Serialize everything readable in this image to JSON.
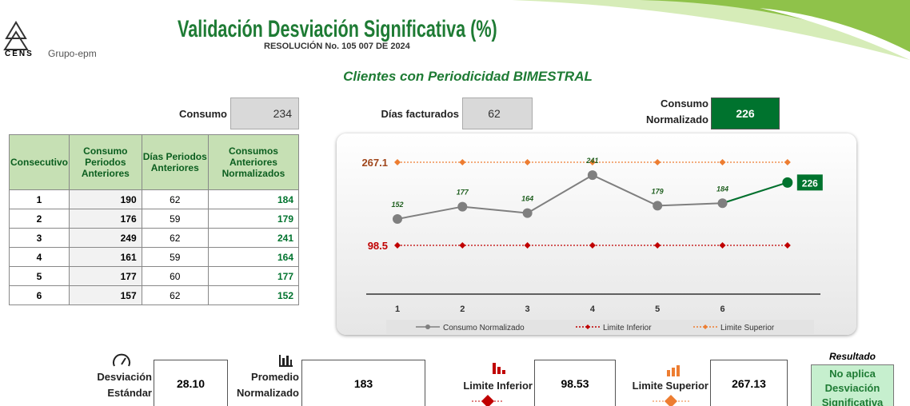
{
  "header": {
    "logo": "CENS",
    "brand": "Grupo-epm",
    "title": "Validación Desviación Significativa (%)",
    "subtitle": "RESOLUCIÓN No. 105 007 DE 2024",
    "section": "Clientes con Periodicidad BIMESTRAL"
  },
  "inputs": {
    "consumo_label": "Consumo",
    "consumo": 234,
    "dias_label": "Días facturados",
    "dias": 62,
    "normalizado_label": "Consumo Normalizado",
    "normalizado": 226
  },
  "table": {
    "columns": [
      "Consecutivo",
      "Consumo Periodos Anteriores",
      "Días Periodos Anteriores",
      "Consumos Anteriores Normalizados"
    ],
    "rows": [
      [
        1,
        190,
        62,
        184
      ],
      [
        2,
        176,
        59,
        179
      ],
      [
        3,
        249,
        62,
        241
      ],
      [
        4,
        161,
        59,
        164
      ],
      [
        5,
        177,
        60,
        177
      ],
      [
        6,
        157,
        62,
        152
      ]
    ]
  },
  "chart": {
    "type": "line",
    "categories": [
      "1",
      "2",
      "3",
      "4",
      "5",
      "6",
      null
    ],
    "highlight_color": "#00732e",
    "series": [
      {
        "name": "Consumo Normalizado",
        "color": "#7f7f7f",
        "values": [
          152,
          177,
          164,
          241,
          179,
          184,
          226
        ]
      },
      {
        "name": "Limite Inferior",
        "color": "#c00000",
        "values": [
          98.5,
          98.5,
          98.5,
          98.5,
          98.5,
          98.5,
          98.5
        ]
      },
      {
        "name": "Limite Superior",
        "color": "#ed7d31",
        "values": [
          267.1,
          267.1,
          267.1,
          267.1,
          267.1,
          267.1,
          267.1
        ]
      }
    ]
  },
  "summary": {
    "desviacion_label": "Desviación Estándar",
    "desviacion": "28.10",
    "promedio_label": "Promedio Normalizado",
    "promedio": 183,
    "inferior_label": "Limite Inferior",
    "inferior": 98.53,
    "superior_label": "Limite Superior",
    "superior": 267.13,
    "resultado_label": "Resultado",
    "resultado": "No aplica Desviación Significativa"
  }
}
